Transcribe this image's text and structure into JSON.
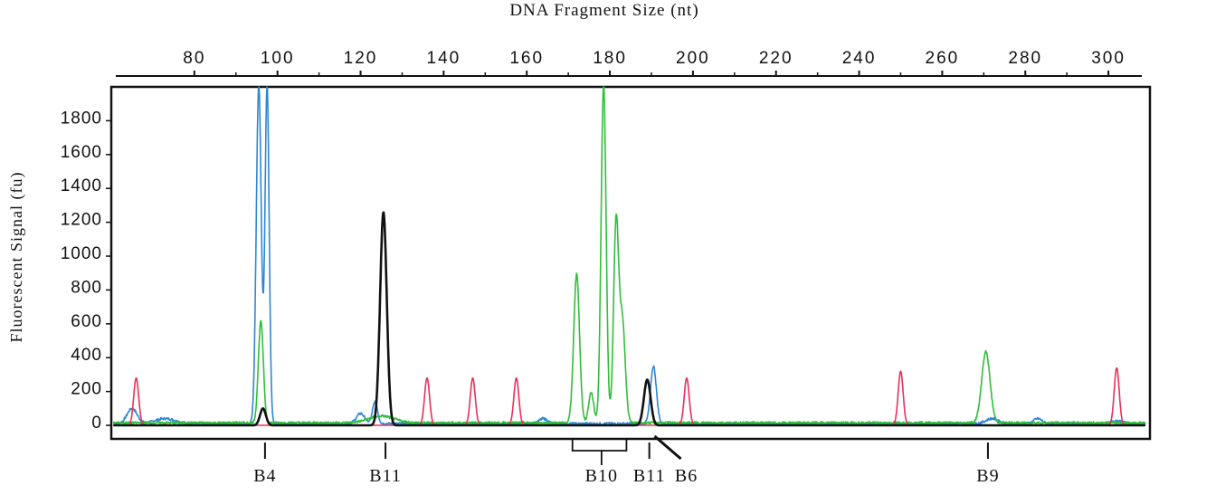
{
  "chart_data": {
    "type": "line",
    "title": "DNA Fragment Size (nt)",
    "xlabel": "",
    "ylabel": "Fluorescent Signal (fu)",
    "xlim": [
      60,
      310
    ],
    "ylim": [
      -80,
      2000
    ],
    "x_ticks": [
      "80",
      "100",
      "120",
      "140",
      "160",
      "180",
      "200",
      "220",
      "240",
      "260",
      "280",
      "300"
    ],
    "y_ticks": [
      "1800",
      "1600",
      "1400",
      "1200",
      "1000",
      "800",
      "600",
      "400",
      "200",
      "0"
    ],
    "grid": false,
    "legend": "none",
    "colors": {
      "blue": "#2e86d6",
      "green": "#2fbf3a",
      "red": "#e8305a",
      "black": "#111111"
    },
    "series": [
      {
        "color": "blue",
        "baseline": 10,
        "peaks": [
          {
            "x": 65,
            "h": 90,
            "w": 1.2
          },
          {
            "x": 73,
            "h": 30,
            "w": 2.5
          },
          {
            "x": 95.5,
            "h": 2000,
            "w": 0.6
          },
          {
            "x": 97.5,
            "h": 2000,
            "w": 0.5
          },
          {
            "x": 120,
            "h": 60,
            "w": 1.0
          },
          {
            "x": 123.5,
            "h": 130,
            "w": 0.6
          },
          {
            "x": 164,
            "h": 30,
            "w": 1.0
          },
          {
            "x": 190.5,
            "h": 340,
            "w": 0.7
          },
          {
            "x": 272,
            "h": 30,
            "w": 1.5
          },
          {
            "x": 283,
            "h": 30,
            "w": 1.0
          },
          {
            "x": 302,
            "h": 15,
            "w": 1.5
          }
        ]
      },
      {
        "color": "green",
        "baseline": 15,
        "peaks": [
          {
            "x": 96,
            "h": 600,
            "w": 0.6
          },
          {
            "x": 125,
            "h": 40,
            "w": 3.0
          },
          {
            "x": 172,
            "h": 880,
            "w": 0.7
          },
          {
            "x": 175.5,
            "h": 180,
            "w": 0.6
          },
          {
            "x": 178.5,
            "h": 2000,
            "w": 0.6
          },
          {
            "x": 181.5,
            "h": 1170,
            "w": 0.6
          },
          {
            "x": 183,
            "h": 600,
            "w": 0.7
          },
          {
            "x": 270.5,
            "h": 420,
            "w": 1.0
          }
        ]
      },
      {
        "color": "red",
        "baseline": 0,
        "peaks": [
          {
            "x": 66,
            "h": 280,
            "w": 0.6
          },
          {
            "x": 136,
            "h": 280,
            "w": 0.6
          },
          {
            "x": 147,
            "h": 280,
            "w": 0.6
          },
          {
            "x": 157.5,
            "h": 280,
            "w": 0.6
          },
          {
            "x": 198.5,
            "h": 280,
            "w": 0.6
          },
          {
            "x": 250,
            "h": 320,
            "w": 0.6
          },
          {
            "x": 302,
            "h": 340,
            "w": 0.6
          }
        ]
      },
      {
        "color": "black",
        "baseline": 0,
        "peaks": [
          {
            "x": 96.5,
            "h": 100,
            "w": 0.7
          },
          {
            "x": 125.5,
            "h": 1260,
            "w": 0.8
          },
          {
            "x": 189,
            "h": 270,
            "w": 0.8
          }
        ]
      }
    ],
    "annotations": [
      {
        "label": "B4",
        "x": 97,
        "type": "tick"
      },
      {
        "label": "B11",
        "x": 126,
        "type": "tick"
      },
      {
        "label": "B10",
        "x": 178,
        "type": "bracket",
        "x_range": [
          171,
          184
        ]
      },
      {
        "label": "B11",
        "x": 189.5,
        "type": "tick"
      },
      {
        "label": "B6",
        "x": 191,
        "type": "slant"
      },
      {
        "label": "B9",
        "x": 271,
        "type": "tick"
      }
    ]
  }
}
